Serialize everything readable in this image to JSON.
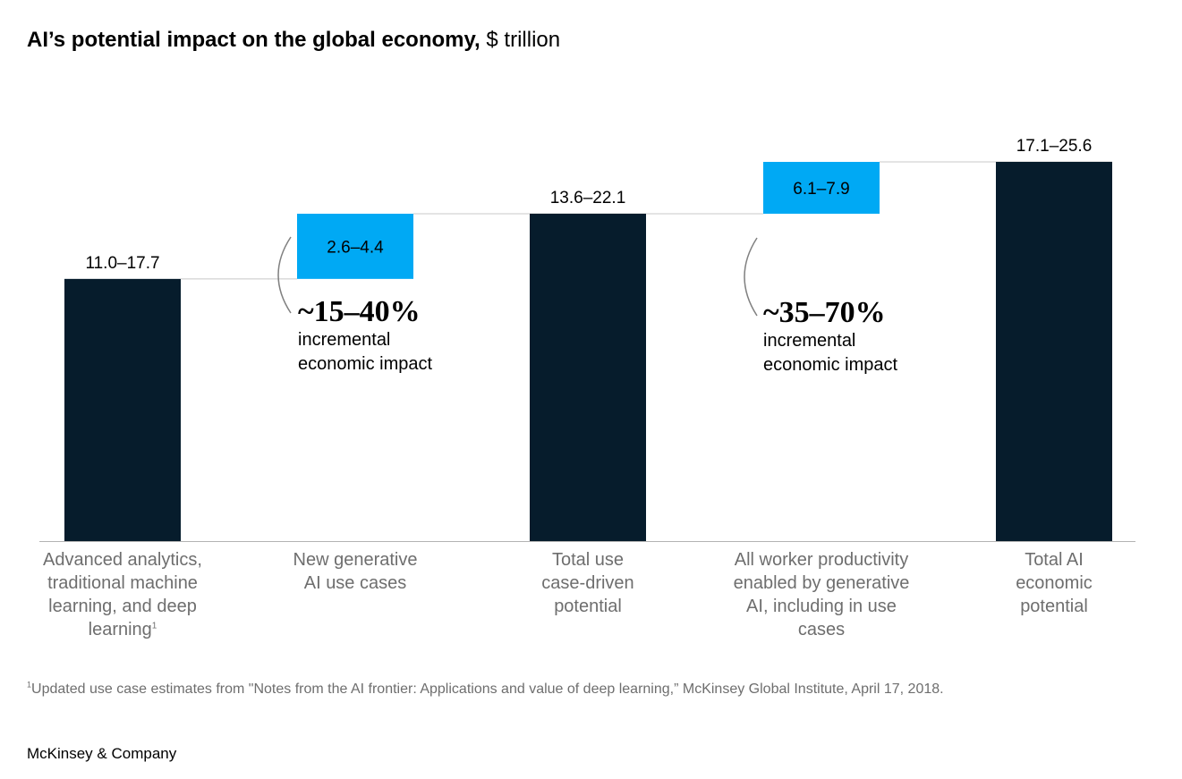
{
  "title": {
    "main": "AI’s potential impact on the global economy,",
    "unit": "$ trillion"
  },
  "colors": {
    "dark_bar": "#061c2c",
    "light_bar": "#00a9f4",
    "axis": "#b3b3b3",
    "connector": "#c8c8c8",
    "bracket": "#808080"
  },
  "chart_data": {
    "type": "bar",
    "subtype": "waterfall",
    "title": "AI’s potential impact on the global economy, $ trillion",
    "unit": "$ trillion",
    "ylim": [
      0,
      25.6
    ],
    "categories": [
      "Advanced analytics, traditional machine learning, and deep learning",
      "New generative AI use cases",
      "Total use case-driven potential",
      "All worker productivity enabled by generative AI, including in use cases",
      "Total AI economic potential"
    ],
    "bars": [
      {
        "kind": "total",
        "low": 11.0,
        "high": 17.7,
        "base": 0,
        "top": 17.7,
        "label": "11.0–17.7"
      },
      {
        "kind": "increment",
        "low": 2.6,
        "high": 4.4,
        "base": 17.7,
        "top": 22.1,
        "label": "2.6–4.4"
      },
      {
        "kind": "total",
        "low": 13.6,
        "high": 22.1,
        "base": 0,
        "top": 22.1,
        "label": "13.6–22.1"
      },
      {
        "kind": "increment",
        "low": 6.1,
        "high": 7.9,
        "base": 22.1,
        "top": 25.6,
        "label": "6.1–7.9"
      },
      {
        "kind": "total",
        "low": 17.1,
        "high": 25.6,
        "base": 0,
        "top": 25.6,
        "label": "17.1–25.6"
      }
    ],
    "annotations": [
      {
        "value": "~15–40%",
        "text_line1": "incremental",
        "text_line2": "economic impact"
      },
      {
        "value": "~35–70%",
        "text_line1": "incremental",
        "text_line2": "economic impact"
      }
    ]
  },
  "category_labels": [
    {
      "lines": [
        "Advanced analytics,",
        "traditional machine",
        "learning, and deep",
        "learning"
      ],
      "footnote_mark": "1"
    },
    {
      "lines": [
        "New generative",
        "AI use cases"
      ]
    },
    {
      "lines": [
        "Total use",
        "case-driven",
        "potential"
      ]
    },
    {
      "lines": [
        "All worker productivity",
        "enabled by generative",
        "AI, including in use",
        "cases"
      ]
    },
    {
      "lines": [
        "Total AI",
        "economic",
        "potential"
      ]
    }
  ],
  "footnote": {
    "mark": "1",
    "text": "Updated use case estimates from \"Notes from the AI frontier: Applications and value of deep learning,” McKinsey Global Institute, April 17, 2018."
  },
  "brand": "McKinsey & Company"
}
